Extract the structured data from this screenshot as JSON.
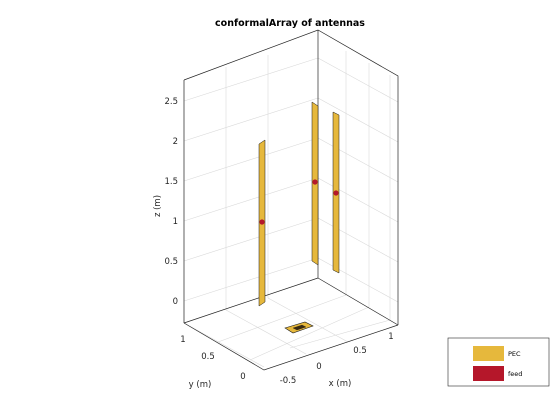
{
  "title": "conformalArray of antennas",
  "axes": {
    "xlabel": "x (m)",
    "ylabel": "y (m)",
    "zlabel": "z (m)",
    "z_ticks": [
      "0",
      "0.5",
      "1",
      "1.5",
      "2",
      "2.5"
    ],
    "x_ticks": [
      "-0.5",
      "0",
      "0.5",
      "1"
    ],
    "y_ticks": [
      "0",
      "0.5",
      "1"
    ]
  },
  "legend": {
    "items": [
      {
        "label": "PEC",
        "color": "#e6b83c"
      },
      {
        "label": "feed",
        "color": "#b5172a"
      }
    ]
  },
  "colors": {
    "pec": "#e6b83c",
    "feed": "#b5172a",
    "grid": "#d9d9d9",
    "axis": "#262626"
  }
}
